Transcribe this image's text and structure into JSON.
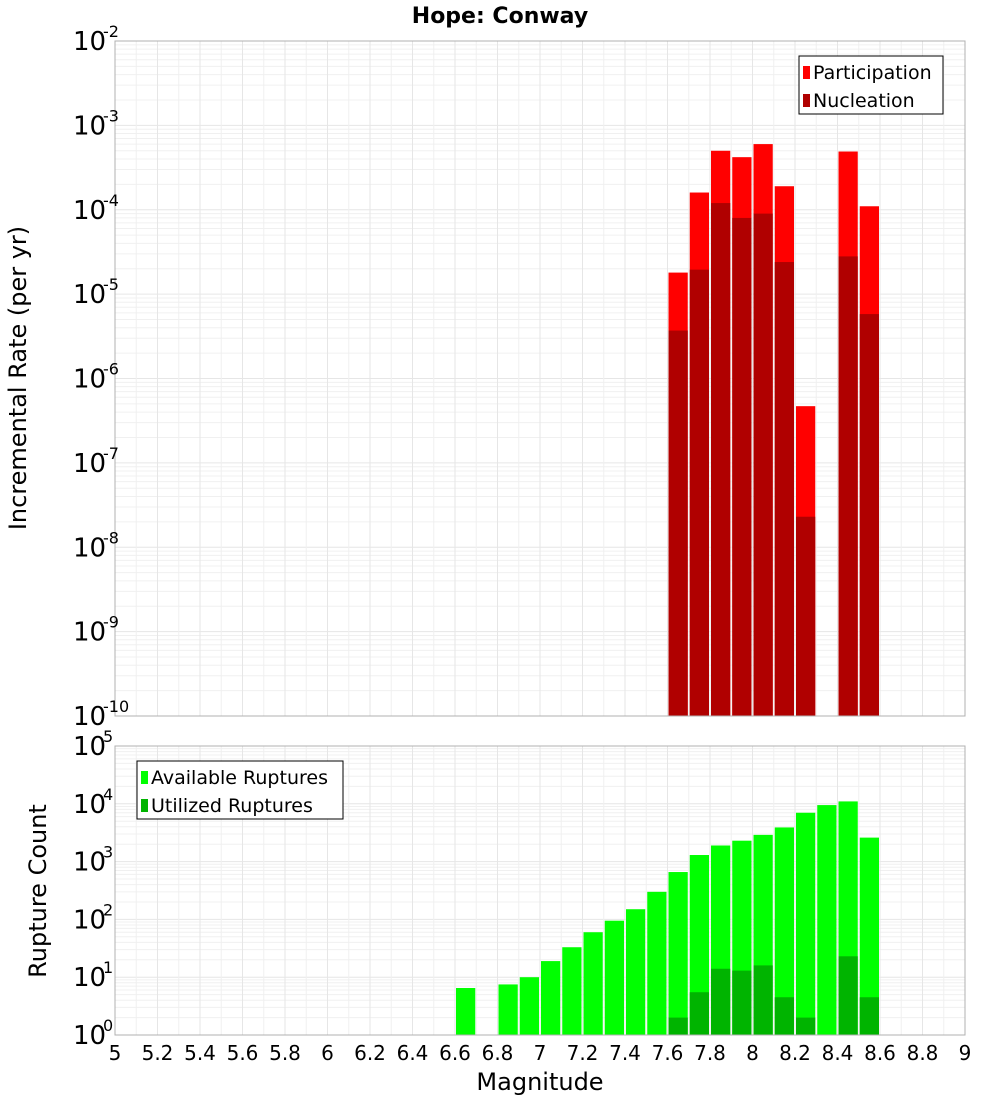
{
  "chart_data": [
    {
      "type": "bar",
      "title": "Hope: Conway",
      "ylabel": "Incremental Rate (per yr)",
      "xlabel": "",
      "yscale": "log",
      "ylim_exp": [
        -10,
        -2
      ],
      "xlim": [
        5,
        9
      ],
      "legend": {
        "placement": "top-right"
      },
      "bar_width": 0.1,
      "series": [
        {
          "name": "Participation",
          "color": "#ff0000",
          "x": [
            7.65,
            7.75,
            7.85,
            7.95,
            8.05,
            8.15,
            8.25,
            8.45,
            8.55
          ],
          "values": [
            1.8e-05,
            0.00016,
            0.0005,
            0.00042,
            0.0006,
            0.00019,
            4.7e-07,
            0.00049,
            0.00011
          ]
        },
        {
          "name": "Nucleation",
          "color": "#b00000",
          "x": [
            7.65,
            7.75,
            7.85,
            7.95,
            8.05,
            8.15,
            8.25,
            8.45,
            8.55
          ],
          "values": [
            3.7e-06,
            1.95e-05,
            0.00012,
            8e-05,
            9e-05,
            2.4e-05,
            2.3e-08,
            2.8e-05,
            5.8e-06
          ]
        }
      ]
    },
    {
      "type": "bar",
      "title": "",
      "ylabel": "Rupture Count",
      "xlabel": "Magnitude",
      "yscale": "log",
      "ylim_exp": [
        0,
        5
      ],
      "xlim": [
        5,
        9
      ],
      "x_ticks": [
        "5",
        "5.2",
        "5.4",
        "5.6",
        "5.8",
        "6",
        "6.2",
        "6.4",
        "6.6",
        "6.8",
        "7",
        "7.2",
        "7.4",
        "7.6",
        "7.8",
        "8",
        "8.2",
        "8.4",
        "8.6",
        "8.8",
        "9"
      ],
      "legend": {
        "placement": "top-left"
      },
      "bar_width": 0.1,
      "series": [
        {
          "name": "Available Ruptures",
          "color": "#00ff00",
          "x": [
            6.65,
            6.85,
            6.95,
            7.05,
            7.15,
            7.25,
            7.35,
            7.45,
            7.55,
            7.65,
            7.75,
            7.85,
            7.95,
            8.05,
            8.15,
            8.25,
            8.35,
            8.45,
            8.55
          ],
          "values": [
            6.5,
            7.5,
            10,
            19,
            33,
            60,
            95,
            150,
            300,
            660,
            1300,
            1900,
            2300,
            2900,
            3900,
            7000,
            9500,
            11000,
            2600
          ]
        },
        {
          "name": "Utilized Ruptures",
          "color": "#00b400",
          "x": [
            7.65,
            7.75,
            7.85,
            7.95,
            8.05,
            8.15,
            8.25,
            8.45,
            8.55
          ],
          "values": [
            2,
            5.5,
            14,
            13,
            16,
            4.5,
            2,
            23,
            4.5
          ]
        }
      ]
    }
  ]
}
